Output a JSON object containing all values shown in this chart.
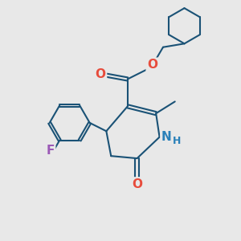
{
  "background_color": "#e8e8e8",
  "bond_color": "#1a5276",
  "bond_width": 1.5,
  "atom_colors": {
    "O": "#e74c3c",
    "N": "#2980b9",
    "F": "#9b59b6",
    "C": "#1a5276"
  },
  "font_size_atom": 10,
  "fig_size": [
    3.0,
    3.0
  ],
  "dpi": 100
}
